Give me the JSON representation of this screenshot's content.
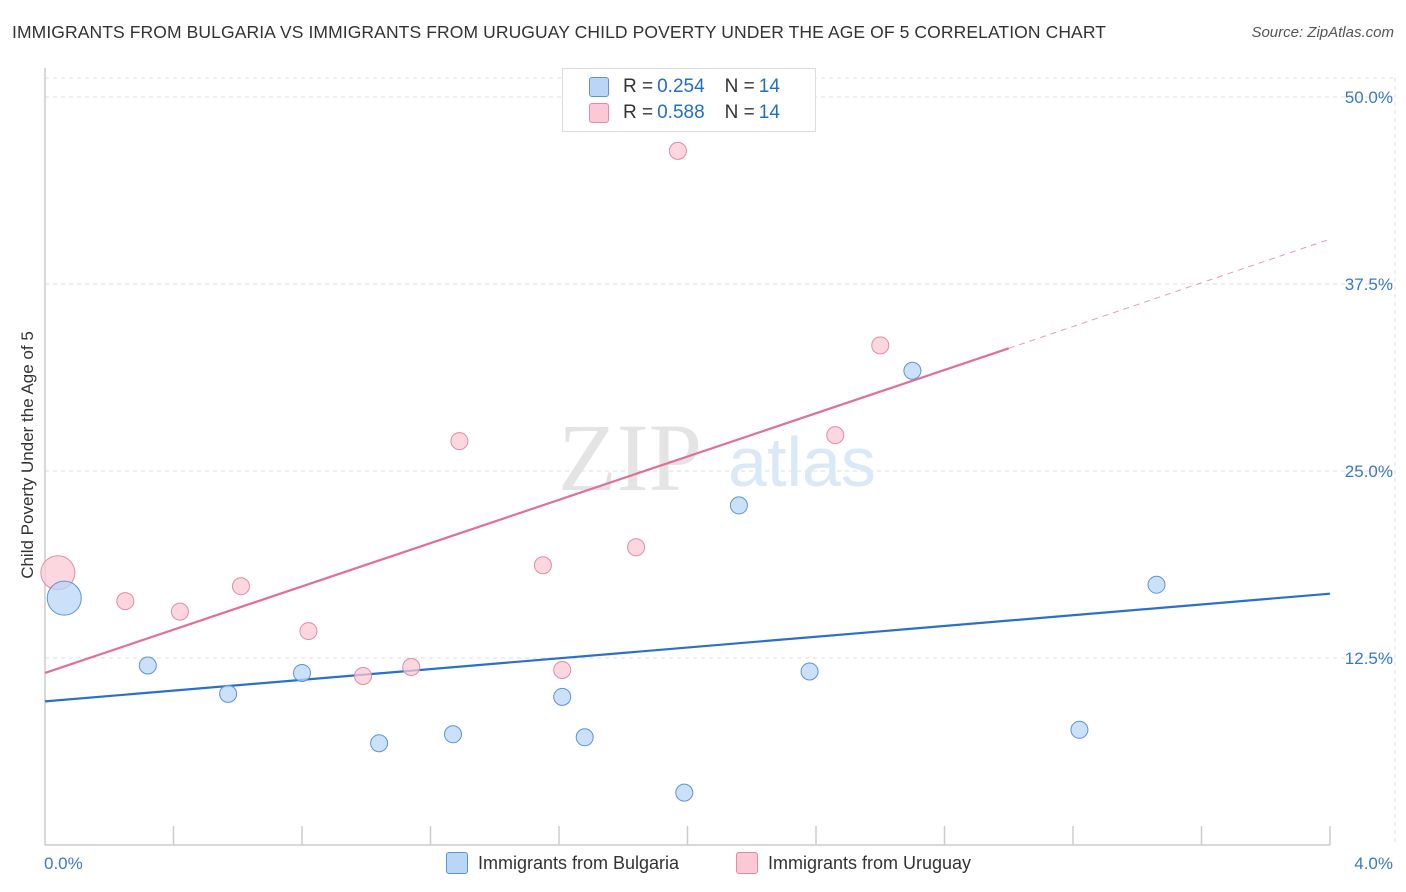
{
  "header": {
    "title": "IMMIGRANTS FROM BULGARIA VS IMMIGRANTS FROM URUGUAY CHILD POVERTY UNDER THE AGE OF 5 CORRELATION CHART",
    "source": "Source: ZipAtlas.com"
  },
  "watermark": {
    "zip": "ZIP",
    "atlas": "atlas"
  },
  "legend": {
    "bulgaria": {
      "r_label": "R = ",
      "r_value": "0.254",
      "n_label": "N = ",
      "n_value": "14"
    },
    "uruguay": {
      "r_label": "R = ",
      "r_value": "0.588",
      "n_label": "N = ",
      "n_value": "14"
    }
  },
  "chart_data": {
    "type": "scatter",
    "title": "IMMIGRANTS FROM BULGARIA VS IMMIGRANTS FROM URUGUAY CHILD POVERTY UNDER THE AGE OF 5 CORRELATION CHART",
    "xlabel": "",
    "ylabel": "Child Poverty Under the Age of 5",
    "xlim": [
      0,
      4.0
    ],
    "ylim": [
      0,
      50.0
    ],
    "x_tick_labels": {
      "min": "0.0%",
      "max": "4.0%"
    },
    "y_ticks": [
      12.5,
      25.0,
      37.5,
      50.0
    ],
    "y_tick_labels": [
      "12.5%",
      "25.0%",
      "37.5%",
      "50.0%"
    ],
    "grid": true,
    "legend_position": "top-center",
    "colors": {
      "bulgaria_fill": "#b9d6f7",
      "bulgaria_stroke": "#5a94d6",
      "bulgaria_line": "#2a6fcc",
      "uruguay_fill": "#fbc9d6",
      "uruguay_stroke": "#e38aa5",
      "uruguay_line": "#e07097",
      "tick_label": "#3a78c9",
      "grid": "#dddddd",
      "axis": "#cccccc"
    },
    "series": [
      {
        "name": "Immigrants from Bulgaria",
        "r": 0.254,
        "n": 14,
        "points": [
          {
            "x": 0.06,
            "y": 16.5,
            "size": "large"
          },
          {
            "x": 0.32,
            "y": 12.0
          },
          {
            "x": 0.57,
            "y": 10.1
          },
          {
            "x": 0.8,
            "y": 11.5
          },
          {
            "x": 1.04,
            "y": 6.8
          },
          {
            "x": 1.27,
            "y": 7.4
          },
          {
            "x": 1.61,
            "y": 9.9
          },
          {
            "x": 1.68,
            "y": 7.2
          },
          {
            "x": 1.99,
            "y": 3.5
          },
          {
            "x": 2.16,
            "y": 22.7
          },
          {
            "x": 2.38,
            "y": 11.6
          },
          {
            "x": 2.7,
            "y": 31.7
          },
          {
            "x": 3.22,
            "y": 7.7
          },
          {
            "x": 3.46,
            "y": 17.4
          }
        ],
        "trend": {
          "x0": 0.0,
          "y0": 9.6,
          "x1": 4.0,
          "y1": 16.8
        }
      },
      {
        "name": "Immigrants from Uruguay",
        "r": 0.588,
        "n": 14,
        "points": [
          {
            "x": 0.04,
            "y": 18.2,
            "size": "large"
          },
          {
            "x": 0.25,
            "y": 16.3
          },
          {
            "x": 0.42,
            "y": 15.6
          },
          {
            "x": 0.61,
            "y": 17.3
          },
          {
            "x": 0.82,
            "y": 14.3
          },
          {
            "x": 0.99,
            "y": 11.3
          },
          {
            "x": 1.14,
            "y": 11.9
          },
          {
            "x": 1.29,
            "y": 27.0
          },
          {
            "x": 1.55,
            "y": 18.7
          },
          {
            "x": 1.61,
            "y": 11.7
          },
          {
            "x": 1.84,
            "y": 19.9
          },
          {
            "x": 1.97,
            "y": 46.4
          },
          {
            "x": 2.46,
            "y": 27.4
          },
          {
            "x": 2.6,
            "y": 33.4
          }
        ],
        "trend": {
          "x0": 0.0,
          "y0": 11.5,
          "x1": 3.0,
          "y1": 33.2
        },
        "trend_dashed": {
          "x0": 3.0,
          "y0": 33.2,
          "x1": 4.0,
          "y1": 40.5
        }
      }
    ]
  }
}
